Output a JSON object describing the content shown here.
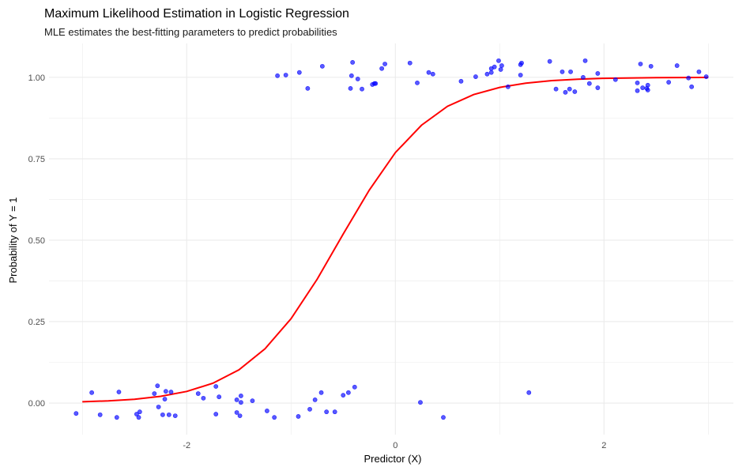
{
  "chart_data": {
    "type": "scatter",
    "title": "Maximum Likelihood Estimation in Logistic Regression",
    "subtitle": "MLE estimates the best-fitting parameters to predict probabilities",
    "xlabel": "Predictor (X)",
    "ylabel": "Probability of Y = 1",
    "xlim": [
      -3.32,
      3.24
    ],
    "ylim": [
      -0.097,
      1.104
    ],
    "x_ticks": [
      {
        "value": -2,
        "label": "-2"
      },
      {
        "value": 0,
        "label": "0"
      },
      {
        "value": 2,
        "label": "2"
      }
    ],
    "x_minor": [
      -3,
      -1,
      1,
      3
    ],
    "y_ticks": [
      {
        "value": 0,
        "label": "0.00"
      },
      {
        "value": 0.25,
        "label": "0.25"
      },
      {
        "value": 0.5,
        "label": "0.50"
      },
      {
        "value": 0.75,
        "label": "0.75"
      },
      {
        "value": 1,
        "label": "1.00"
      }
    ],
    "y_minor": [
      0.125,
      0.375,
      0.625,
      0.875
    ],
    "grid": true,
    "colors": {
      "points": "#0000ff",
      "curve": "#ff0000",
      "grid": "#ebebeb"
    },
    "points": [
      [
        -3.06,
        -0.032
      ],
      [
        -2.91,
        0.032
      ],
      [
        -2.83,
        -0.036
      ],
      [
        -2.67,
        -0.044
      ],
      [
        -2.65,
        0.034
      ],
      [
        -2.48,
        -0.034
      ],
      [
        -2.46,
        -0.044
      ],
      [
        -2.45,
        -0.027
      ],
      [
        -2.31,
        0.029
      ],
      [
        -2.28,
        0.053
      ],
      [
        -2.27,
        -0.012
      ],
      [
        -2.23,
        -0.036
      ],
      [
        -2.21,
        0.012
      ],
      [
        -2.2,
        0.036
      ],
      [
        -2.17,
        -0.036
      ],
      [
        -2.15,
        0.034
      ],
      [
        -2.11,
        -0.039
      ],
      [
        -1.89,
        0.029
      ],
      [
        -1.84,
        0.015
      ],
      [
        -1.72,
        0.051
      ],
      [
        -1.72,
        -0.034
      ],
      [
        -1.69,
        0.019
      ],
      [
        -1.52,
        0.01
      ],
      [
        -1.52,
        -0.029
      ],
      [
        -1.49,
        -0.039
      ],
      [
        -1.48,
        0.022
      ],
      [
        -1.48,
        0.002
      ],
      [
        -1.37,
        0.007
      ],
      [
        -1.23,
        -0.024
      ],
      [
        -1.16,
        -0.044
      ],
      [
        -0.93,
        -0.041
      ],
      [
        -0.82,
        -0.019
      ],
      [
        -0.77,
        0.01
      ],
      [
        -0.71,
        0.032
      ],
      [
        -0.66,
        -0.027
      ],
      [
        -0.58,
        -0.027
      ],
      [
        -0.5,
        0.024
      ],
      [
        -0.45,
        0.032
      ],
      [
        -0.39,
        0.049
      ],
      [
        0.24,
        0.002
      ],
      [
        0.46,
        -0.044
      ],
      [
        1.28,
        0.032
      ],
      [
        -1.13,
        1.005
      ],
      [
        -1.05,
        1.007
      ],
      [
        -0.92,
        1.015
      ],
      [
        -0.84,
        0.966
      ],
      [
        -0.7,
        1.034
      ],
      [
        -0.43,
        0.966
      ],
      [
        -0.42,
        1.005
      ],
      [
        -0.41,
        1.046
      ],
      [
        -0.36,
        0.995
      ],
      [
        -0.32,
        0.964
      ],
      [
        -0.22,
        0.978
      ],
      [
        -0.2,
        0.981
      ],
      [
        -0.19,
        0.981
      ],
      [
        -0.13,
        1.027
      ],
      [
        -0.1,
        1.041
      ],
      [
        0.14,
        1.044
      ],
      [
        0.21,
        0.983
      ],
      [
        0.32,
        1.015
      ],
      [
        0.36,
        1.01
      ],
      [
        0.63,
        0.988
      ],
      [
        0.77,
        1.002
      ],
      [
        0.88,
        1.01
      ],
      [
        0.92,
        1.027
      ],
      [
        0.92,
        1.015
      ],
      [
        0.95,
        1.032
      ],
      [
        0.99,
        1.051
      ],
      [
        1.01,
        1.024
      ],
      [
        1.02,
        1.036
      ],
      [
        1.08,
        0.971
      ],
      [
        1.2,
        1.039
      ],
      [
        1.21,
        1.044
      ],
      [
        1.2,
        1.007
      ],
      [
        1.48,
        1.049
      ],
      [
        1.54,
        0.964
      ],
      [
        1.6,
        1.017
      ],
      [
        1.63,
        0.954
      ],
      [
        1.67,
        0.964
      ],
      [
        1.68,
        1.017
      ],
      [
        1.72,
        0.956
      ],
      [
        1.8,
        1.0
      ],
      [
        1.82,
        1.051
      ],
      [
        1.86,
        0.981
      ],
      [
        1.94,
        1.012
      ],
      [
        1.94,
        0.968
      ],
      [
        2.11,
        0.993
      ],
      [
        2.32,
        0.983
      ],
      [
        2.32,
        0.959
      ],
      [
        2.35,
        1.041
      ],
      [
        2.37,
        0.968
      ],
      [
        2.41,
        0.966
      ],
      [
        2.42,
        0.961
      ],
      [
        2.42,
        0.976
      ],
      [
        2.45,
        1.034
      ],
      [
        2.62,
        0.985
      ],
      [
        2.7,
        1.036
      ],
      [
        2.81,
        0.998
      ],
      [
        2.84,
        0.971
      ],
      [
        2.91,
        1.017
      ],
      [
        2.98,
        1.002
      ]
    ],
    "fitted_curve": [
      [
        -3,
        0.0039
      ],
      [
        -2.75,
        0.0068
      ],
      [
        -2.5,
        0.0118
      ],
      [
        -2.25,
        0.0206
      ],
      [
        -2,
        0.0356
      ],
      [
        -1.75,
        0.0607
      ],
      [
        -1.5,
        0.102
      ],
      [
        -1.25,
        0.1666
      ],
      [
        -1,
        0.259
      ],
      [
        -0.75,
        0.38
      ],
      [
        -0.5,
        0.519
      ],
      [
        -0.25,
        0.654
      ],
      [
        0,
        0.769
      ],
      [
        0.25,
        0.853
      ],
      [
        0.5,
        0.911
      ],
      [
        0.75,
        0.947
      ],
      [
        1,
        0.969
      ],
      [
        1.25,
        0.982
      ],
      [
        1.5,
        0.99
      ],
      [
        1.75,
        0.994
      ],
      [
        2,
        0.997
      ],
      [
        2.5,
        0.999
      ],
      [
        3,
        1.0
      ]
    ]
  }
}
